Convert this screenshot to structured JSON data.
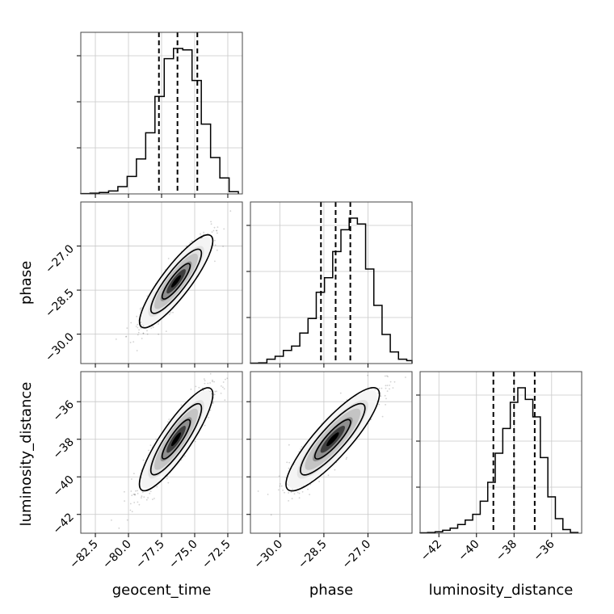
{
  "figure": {
    "x_labels": [
      "geocent_time",
      "phase",
      "luminosity_distance"
    ],
    "y_labels": [
      "phase",
      "luminosity_distance"
    ]
  },
  "chart_data": {
    "type": "corner",
    "parameters": [
      "geocent_time",
      "phase",
      "luminosity_distance"
    ],
    "ranges": {
      "geocent_time": [
        -83.6,
        -71.4
      ],
      "phase": [
        -31.0,
        -25.5
      ],
      "luminosity_distance": [
        -43.0,
        -34.4
      ]
    },
    "ticks": {
      "geocent_time": {
        "values": [
          -82.5,
          -80.0,
          -77.5,
          -75.0,
          -72.5
        ],
        "labels": [
          "−82.5",
          "−80.0",
          "−77.5",
          "−75.0",
          "−72.5"
        ]
      },
      "phase": {
        "values": [
          -30.0,
          -28.5,
          -27.0
        ],
        "labels": [
          "−30.0",
          "−28.5",
          "−27.0"
        ]
      },
      "luminosity_distance": {
        "values": [
          -42,
          -40,
          -38,
          -36
        ],
        "labels": [
          "−42",
          "−40",
          "−38",
          "−36"
        ]
      }
    },
    "quantiles": {
      "geocent_time": [
        -77.7,
        -76.3,
        -74.8
      ],
      "phase": [
        -28.6,
        -28.1,
        -27.6
      ],
      "luminosity_distance": [
        -39.1,
        -38.0,
        -36.9
      ]
    },
    "histograms": {
      "geocent_time": {
        "edges": [
          -83.6,
          -82.9,
          -82.2,
          -81.5,
          -80.8,
          -80.1,
          -79.4,
          -78.7,
          -78.0,
          -77.3,
          -76.6,
          -75.9,
          -75.2,
          -74.5,
          -73.8,
          -73.1,
          -72.4,
          -71.7
        ],
        "counts": [
          0.2,
          0.5,
          1,
          2,
          5,
          12,
          24,
          42,
          67,
          93,
          100,
          99,
          78,
          48,
          25,
          11,
          1.5
        ]
      },
      "phase": {
        "edges": [
          -31.0,
          -30.72,
          -30.44,
          -30.16,
          -29.88,
          -29.6,
          -29.32,
          -29.04,
          -28.76,
          -28.48,
          -28.2,
          -27.92,
          -27.64,
          -27.36,
          -27.08,
          -26.8,
          -26.52,
          -26.24,
          -25.96,
          -25.68,
          -25.5
        ],
        "counts": [
          0.3,
          0.5,
          3,
          5,
          9,
          12,
          21,
          31,
          49,
          59,
          77,
          92,
          100,
          96,
          65,
          40,
          20,
          8,
          3,
          2
        ]
      },
      "luminosity_distance": {
        "edges": [
          -43.0,
          -42.6,
          -42.2,
          -41.8,
          -41.4,
          -41.0,
          -40.6,
          -40.2,
          -39.8,
          -39.4,
          -39.0,
          -38.6,
          -38.2,
          -37.8,
          -37.4,
          -37.0,
          -36.6,
          -36.2,
          -35.8,
          -35.4,
          -35.0,
          -34.6
        ],
        "counts": [
          0.3,
          0.5,
          1,
          2,
          3.5,
          6,
          9,
          13,
          22,
          35,
          55,
          72,
          90,
          100,
          92,
          80,
          52,
          25,
          10,
          2.5,
          0.5
        ]
      }
    },
    "joint": {
      "phase_vs_geocent_time": {
        "center": [
          -76.4,
          -28.2
        ],
        "sigma": [
          1.3,
          0.75
        ],
        "correlation": 0.9
      },
      "luminosity_distance_vs_geocent_time": {
        "center": [
          -76.4,
          -38.0
        ],
        "sigma": [
          1.3,
          1.3
        ],
        "correlation": 0.9
      },
      "luminosity_distance_vs_phase": {
        "center": [
          -28.2,
          -38.0
        ],
        "sigma": [
          0.75,
          1.3
        ],
        "correlation": 0.9
      }
    },
    "grid": true,
    "legend": "none"
  }
}
